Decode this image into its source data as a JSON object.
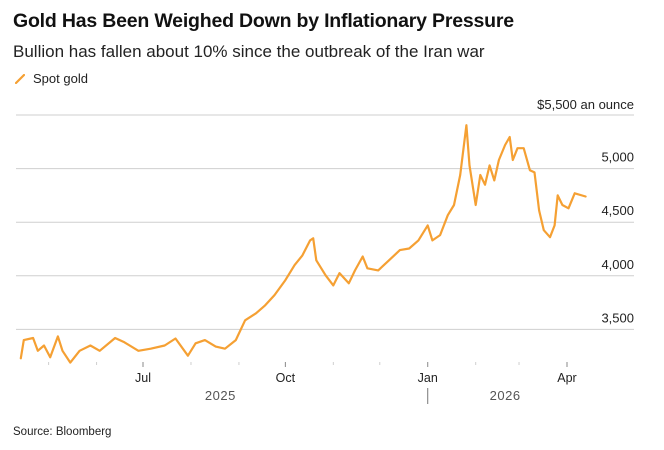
{
  "header": {
    "title": "Gold Has Been Weighed Down by Inflationary Pressure",
    "subtitle": "Bullion has fallen about 10% since the outbreak of the Iran war"
  },
  "legend": [
    {
      "label": "Spot gold",
      "color": "#f5a033"
    }
  ],
  "footer": {
    "source": "Source: Bloomberg"
  },
  "chart_data": {
    "type": "line",
    "title": "Gold Has Been Weighed Down by Inflationary Pressure",
    "subtitle": "Bullion has fallen about 10% since the outbreak of the Iran war",
    "xlabel": "",
    "ylabel": "",
    "y_unit_label": "$5,500 an ounce",
    "ylim": [
      3150,
      5500
    ],
    "yticks": [
      3500,
      4000,
      4500,
      5000,
      5500
    ],
    "ytick_labels": [
      "3,500",
      "4,000",
      "4,500",
      "5,000",
      "$5,500 an ounce"
    ],
    "xlim": [
      "2025-04-01",
      "2026-04-20"
    ],
    "xticks": [
      {
        "date": "2025-07-01",
        "label": "Jul"
      },
      {
        "date": "2025-10-01",
        "label": "Oct"
      },
      {
        "date": "2026-01-01",
        "label": "Jan"
      },
      {
        "date": "2026-04-01",
        "label": "Apr"
      }
    ],
    "minor_xticks": [
      "2025-05-01",
      "2025-06-01",
      "2025-08-01",
      "2025-09-01",
      "2025-11-01",
      "2025-12-01",
      "2026-02-01",
      "2026-03-01"
    ],
    "year_labels": [
      {
        "label": "2025",
        "center": "2025-08-20"
      },
      {
        "label": "2026",
        "center": "2026-02-20"
      }
    ],
    "year_divider": "2026-01-01",
    "grid": true,
    "legend_position": "top-left",
    "series": [
      {
        "name": "Spot gold",
        "color": "#f5a033",
        "points": [
          [
            "2025-04-13",
            3230
          ],
          [
            "2025-04-15",
            3400
          ],
          [
            "2025-04-21",
            3420
          ],
          [
            "2025-04-24",
            3300
          ],
          [
            "2025-04-28",
            3350
          ],
          [
            "2025-05-02",
            3240
          ],
          [
            "2025-05-07",
            3435
          ],
          [
            "2025-05-10",
            3300
          ],
          [
            "2025-05-15",
            3190
          ],
          [
            "2025-05-21",
            3300
          ],
          [
            "2025-05-28",
            3350
          ],
          [
            "2025-06-03",
            3300
          ],
          [
            "2025-06-13",
            3420
          ],
          [
            "2025-06-19",
            3380
          ],
          [
            "2025-06-28",
            3300
          ],
          [
            "2025-07-06",
            3320
          ],
          [
            "2025-07-15",
            3350
          ],
          [
            "2025-07-22",
            3415
          ],
          [
            "2025-07-30",
            3255
          ],
          [
            "2025-08-04",
            3370
          ],
          [
            "2025-08-10",
            3400
          ],
          [
            "2025-08-17",
            3340
          ],
          [
            "2025-08-23",
            3320
          ],
          [
            "2025-08-30",
            3400
          ],
          [
            "2025-09-05",
            3585
          ],
          [
            "2025-09-12",
            3650
          ],
          [
            "2025-09-18",
            3725
          ],
          [
            "2025-09-24",
            3820
          ],
          [
            "2025-10-01",
            3960
          ],
          [
            "2025-10-07",
            4100
          ],
          [
            "2025-10-12",
            4190
          ],
          [
            "2025-10-17",
            4330
          ],
          [
            "2025-10-19",
            4350
          ],
          [
            "2025-10-21",
            4145
          ],
          [
            "2025-10-27",
            4005
          ],
          [
            "2025-11-01",
            3910
          ],
          [
            "2025-11-05",
            4025
          ],
          [
            "2025-11-11",
            3930
          ],
          [
            "2025-11-15",
            4050
          ],
          [
            "2025-11-20",
            4180
          ],
          [
            "2025-11-23",
            4070
          ],
          [
            "2025-11-30",
            4050
          ],
          [
            "2025-12-07",
            4145
          ],
          [
            "2025-12-14",
            4240
          ],
          [
            "2025-12-20",
            4255
          ],
          [
            "2025-12-26",
            4330
          ],
          [
            "2026-01-01",
            4470
          ],
          [
            "2026-01-04",
            4330
          ],
          [
            "2026-01-09",
            4380
          ],
          [
            "2026-01-14",
            4565
          ],
          [
            "2026-01-18",
            4660
          ],
          [
            "2026-01-22",
            4940
          ],
          [
            "2026-01-26",
            5405
          ],
          [
            "2026-01-28",
            5030
          ],
          [
            "2026-02-01",
            4660
          ],
          [
            "2026-02-04",
            4940
          ],
          [
            "2026-02-07",
            4850
          ],
          [
            "2026-02-10",
            5030
          ],
          [
            "2026-02-13",
            4890
          ],
          [
            "2026-02-16",
            5080
          ],
          [
            "2026-02-20",
            5220
          ],
          [
            "2026-02-23",
            5295
          ],
          [
            "2026-02-25",
            5080
          ],
          [
            "2026-02-28",
            5190
          ],
          [
            "2026-03-04",
            5190
          ],
          [
            "2026-03-08",
            4985
          ],
          [
            "2026-03-11",
            4965
          ],
          [
            "2026-03-14",
            4610
          ],
          [
            "2026-03-17",
            4425
          ],
          [
            "2026-03-21",
            4360
          ],
          [
            "2026-03-24",
            4470
          ],
          [
            "2026-03-26",
            4750
          ],
          [
            "2026-03-29",
            4660
          ],
          [
            "2026-04-02",
            4630
          ],
          [
            "2026-04-06",
            4770
          ],
          [
            "2026-04-13",
            4740
          ]
        ]
      }
    ]
  }
}
